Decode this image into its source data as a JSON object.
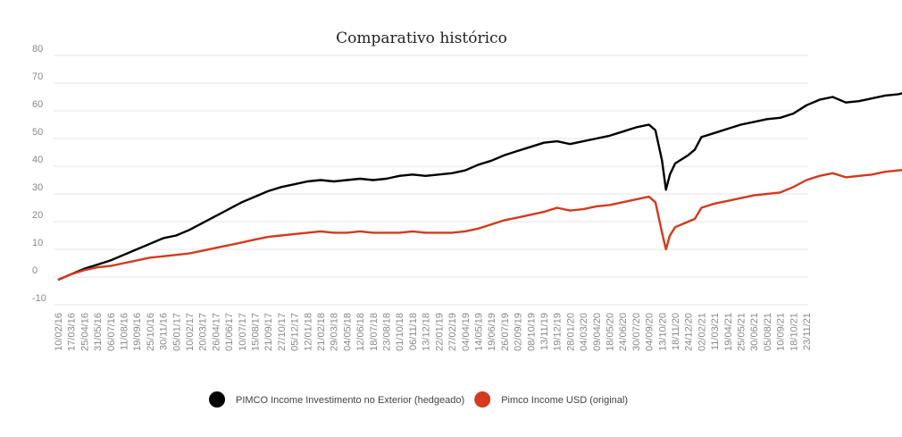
{
  "chart_data": {
    "type": "line",
    "title": "Comparativo histórico",
    "xlabel": "",
    "ylabel": "",
    "ylim": [
      -10,
      80
    ],
    "y_ticks": [
      "80",
      "70",
      "60",
      "50",
      "40",
      "30",
      "20",
      "10",
      "0",
      "-10"
    ],
    "grid": true,
    "legend_position": "bottom-center",
    "x_tick_labels": [
      "10/02/16",
      "17/03/16",
      "25/04/16",
      "31/05/16",
      "06/07/16",
      "11/08/16",
      "19/09/16",
      "25/10/16",
      "30/11/16",
      "05/01/17",
      "10/02/17",
      "20/03/17",
      "26/04/17",
      "01/06/17",
      "10/07/17",
      "15/08/17",
      "21/09/17",
      "27/10/17",
      "05/12/17",
      "12/01/18",
      "21/02/18",
      "29/03/18",
      "04/05/18",
      "12/06/18",
      "18/07/18",
      "23/08/18",
      "01/10/18",
      "06/11/18",
      "13/12/18",
      "22/01/19",
      "27/02/19",
      "04/04/19",
      "14/05/19",
      "19/06/19",
      "26/07/19",
      "02/09/19",
      "08/10/19",
      "13/11/19",
      "19/12/19",
      "28/01/20",
      "04/03/20",
      "09/04/20",
      "18/05/20",
      "24/06/20",
      "30/07/20",
      "04/09/20",
      "13/10/20",
      "18/11/20",
      "24/12/20",
      "02/02/21",
      "11/03/21",
      "19/04/21",
      "25/05/21",
      "30/06/21",
      "05/08/21",
      "10/09/21",
      "18/10/21",
      "23/11/21"
    ],
    "series": [
      {
        "name": "PIMCO Income Investimento no Exterior (hedgeado)",
        "color": "#000000",
        "points": [
          [
            0,
            -1
          ],
          [
            1,
            1
          ],
          [
            2,
            3
          ],
          [
            3,
            4.5
          ],
          [
            4,
            6
          ],
          [
            5,
            8
          ],
          [
            6,
            10
          ],
          [
            7,
            12
          ],
          [
            8,
            14
          ],
          [
            9,
            15
          ],
          [
            10,
            17
          ],
          [
            11,
            19.5
          ],
          [
            12,
            22
          ],
          [
            13,
            24.5
          ],
          [
            14,
            27
          ],
          [
            15,
            29
          ],
          [
            16,
            31
          ],
          [
            17,
            32.5
          ],
          [
            18,
            33.5
          ],
          [
            19,
            34.5
          ],
          [
            20,
            35
          ],
          [
            21,
            34.5
          ],
          [
            22,
            35
          ],
          [
            23,
            35.5
          ],
          [
            24,
            35
          ],
          [
            25,
            35.5
          ],
          [
            26,
            36.5
          ],
          [
            27,
            37
          ],
          [
            28,
            36.5
          ],
          [
            29,
            37
          ],
          [
            30,
            37.5
          ],
          [
            31,
            38.5
          ],
          [
            32,
            40.5
          ],
          [
            33,
            42
          ],
          [
            34,
            44
          ],
          [
            35,
            45.5
          ],
          [
            36,
            47
          ],
          [
            37,
            48.5
          ],
          [
            38,
            49
          ],
          [
            39,
            48
          ],
          [
            40,
            49
          ],
          [
            41,
            50
          ],
          [
            42,
            51
          ],
          [
            43,
            52.5
          ],
          [
            44,
            54
          ],
          [
            45,
            55
          ],
          [
            45.5,
            53
          ],
          [
            46,
            42
          ],
          [
            46.3,
            31.5
          ],
          [
            46.6,
            37
          ],
          [
            47,
            41
          ],
          [
            48,
            44
          ],
          [
            48.5,
            46
          ],
          [
            49,
            50.5
          ],
          [
            50,
            52
          ],
          [
            51,
            53.5
          ],
          [
            52,
            55
          ],
          [
            53,
            56
          ],
          [
            54,
            57
          ],
          [
            55,
            57.5
          ],
          [
            56,
            59
          ],
          [
            57,
            62
          ],
          [
            58,
            64
          ],
          [
            59,
            65
          ],
          [
            60,
            63
          ],
          [
            61,
            63.5
          ],
          [
            62,
            64.5
          ],
          [
            63,
            65.5
          ],
          [
            64,
            66
          ],
          [
            65,
            67
          ],
          [
            66,
            67.5
          ],
          [
            67,
            68
          ],
          [
            68,
            69
          ],
          [
            69,
            69.5
          ],
          [
            70,
            70
          ],
          [
            70.5,
            69.5
          ]
        ]
      },
      {
        "name": "Pimco Income USD (original)",
        "color": "#d33a1e",
        "points": [
          [
            0,
            -1
          ],
          [
            1,
            1
          ],
          [
            2,
            2.5
          ],
          [
            3,
            3.5
          ],
          [
            4,
            4
          ],
          [
            5,
            5
          ],
          [
            6,
            6
          ],
          [
            7,
            7
          ],
          [
            8,
            7.5
          ],
          [
            9,
            8
          ],
          [
            10,
            8.5
          ],
          [
            11,
            9.5
          ],
          [
            12,
            10.5
          ],
          [
            13,
            11.5
          ],
          [
            14,
            12.5
          ],
          [
            15,
            13.5
          ],
          [
            16,
            14.5
          ],
          [
            17,
            15
          ],
          [
            18,
            15.5
          ],
          [
            19,
            16
          ],
          [
            20,
            16.5
          ],
          [
            21,
            16
          ],
          [
            22,
            16
          ],
          [
            23,
            16.5
          ],
          [
            24,
            16
          ],
          [
            25,
            16
          ],
          [
            26,
            16
          ],
          [
            27,
            16.5
          ],
          [
            28,
            16
          ],
          [
            29,
            16
          ],
          [
            30,
            16
          ],
          [
            31,
            16.5
          ],
          [
            32,
            17.5
          ],
          [
            33,
            19
          ],
          [
            34,
            20.5
          ],
          [
            35,
            21.5
          ],
          [
            36,
            22.5
          ],
          [
            37,
            23.5
          ],
          [
            38,
            25
          ],
          [
            39,
            24
          ],
          [
            40,
            24.5
          ],
          [
            41,
            25.5
          ],
          [
            42,
            26
          ],
          [
            43,
            27
          ],
          [
            44,
            28
          ],
          [
            45,
            29
          ],
          [
            45.5,
            27
          ],
          [
            46,
            16
          ],
          [
            46.3,
            10
          ],
          [
            46.6,
            15
          ],
          [
            47,
            18
          ],
          [
            48,
            20
          ],
          [
            48.5,
            21
          ],
          [
            49,
            25
          ],
          [
            50,
            26.5
          ],
          [
            51,
            27.5
          ],
          [
            52,
            28.5
          ],
          [
            53,
            29.5
          ],
          [
            54,
            30
          ],
          [
            55,
            30.5
          ],
          [
            56,
            32.5
          ],
          [
            57,
            35
          ],
          [
            58,
            36.5
          ],
          [
            59,
            37.5
          ],
          [
            60,
            36
          ],
          [
            61,
            36.5
          ],
          [
            62,
            37
          ],
          [
            63,
            38
          ],
          [
            64,
            38.5
          ],
          [
            65,
            39
          ],
          [
            66,
            39
          ],
          [
            67,
            39.5
          ],
          [
            68,
            39.5
          ],
          [
            69,
            40
          ],
          [
            70,
            39.5
          ],
          [
            70.5,
            39
          ]
        ]
      }
    ]
  }
}
